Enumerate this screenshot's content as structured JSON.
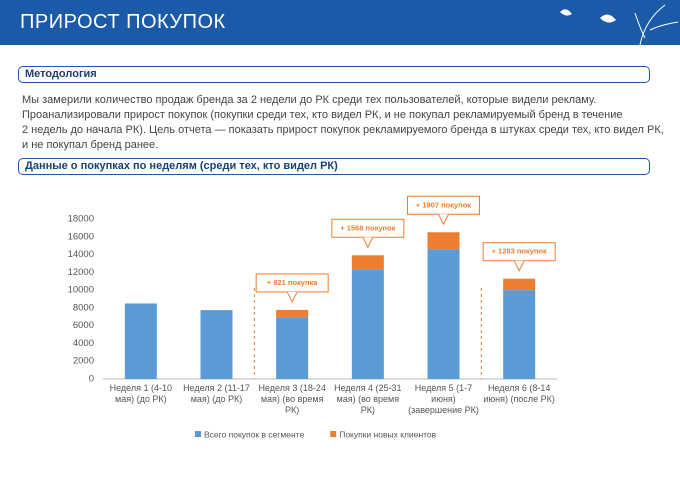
{
  "header": {
    "title": "ПРИРОСТ ПОКУПОК"
  },
  "sections": [
    {
      "title": "Методология",
      "lines": [
        "Мы замерили количество продаж бренда за 2 недели до РК среди тех пользователей, которые видели рекламу.",
        "Проанализировали прирост покупок (покупки среди тех, кто видел РК, и не покупал рекламируемый бренд в течение",
        "2 недель до начала РК). Цель отчета — показать прирост покупок рекламируемого бренда в штуках среди тех, кто видел РК,",
        "и не покупал бренд ранее."
      ]
    },
    {
      "title": "Данные о покупках по неделям (среди тех, кто видел РК)"
    }
  ],
  "chart_data": {
    "type": "stacked_bar",
    "categories": [
      "Неделя 1 (4-10 мая) (до РК)",
      "Неделя 2 (11-17 мая) (до РК)",
      "Неделя 3 (18-24 мая) (во время РК)",
      "Неделя 4 (25-31 мая) (во время РК)",
      "Неделя 5 (1-7 июня) (завершение РК)",
      "Неделя 6 (8-14 июня) (после РК)"
    ],
    "series": [
      {
        "name": "Всего покупок в сегменте",
        "color": "#5b9bd5",
        "values": [
          8500,
          7750,
          6950,
          12350,
          14600,
          10000
        ]
      },
      {
        "name": "Покупки новых клиентов",
        "color": "#ed7d31",
        "values": [
          null,
          null,
          821,
          1568,
          1907,
          1283
        ],
        "value_labels": [
          null,
          null,
          "+ 821 покупка",
          "+ 1568 покупок",
          "+ 1907 покупок",
          "+ 1283 покупок"
        ]
      }
    ],
    "ylim": [
      0,
      18000
    ],
    "yticks": [
      0,
      2000,
      4000,
      6000,
      8000,
      10000,
      12000,
      14000,
      16000,
      18000
    ],
    "grid": false,
    "legend": "bottom"
  }
}
